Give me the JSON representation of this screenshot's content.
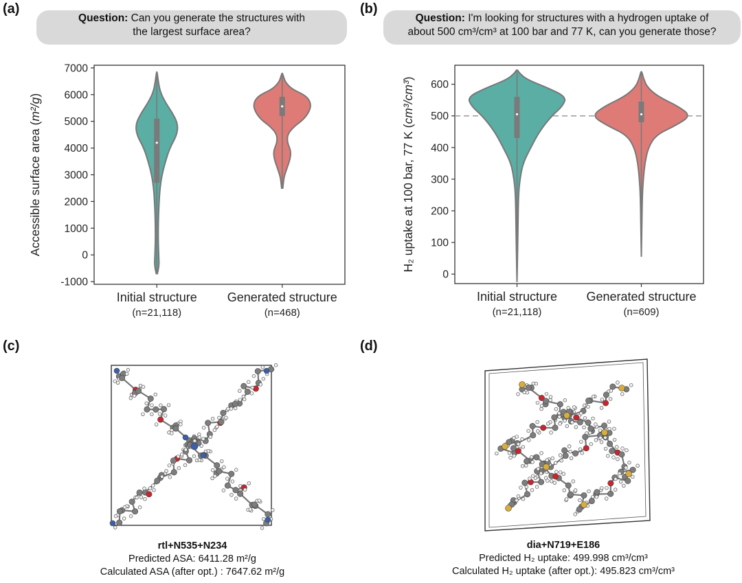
{
  "panels": {
    "a": {
      "label": "(a)",
      "question_prefix": "Question:",
      "question_line1": "Can you generate the structures with",
      "question_line2": "the largest surface area?"
    },
    "b": {
      "label": "(b)",
      "question_prefix": "Question:",
      "question_line1": "I'm looking for structures with a hydrogen uptake of",
      "question_line2": "about 500 cm³/cm³ at 100 bar and 77 K, can you generate those?"
    },
    "c": {
      "label": "(c)",
      "name": "rtl+N535+N234",
      "line1": "Predicted ASA: 6411.28 m²/g",
      "line2": "Calculated ASA (after opt.) : 7647.62 m²/g"
    },
    "d": {
      "label": "(d)",
      "name": "dia+N719+E186",
      "line1": "Predicted H₂ uptake: 499.998 cm³/cm³",
      "line2": "Calculated H₂ uptake (after opt.): 495.823 cm³/cm³"
    }
  },
  "chart_data": [
    {
      "type": "violin",
      "ylabel": "Accessible surface area (m²/g)",
      "ylim": [
        -1100,
        7100
      ],
      "yticks": [
        -1000,
        0,
        1000,
        2000,
        3000,
        4000,
        5000,
        6000,
        7000
      ],
      "categories": [
        "Initial structure",
        "Generated structure"
      ],
      "counts": [
        "(n=21,118)",
        "(n=468)"
      ],
      "colors": [
        "#5aaea4",
        "#de7b77"
      ],
      "series": [
        {
          "median": 4200,
          "q1": 2700,
          "q3": 5100,
          "min": -700,
          "max": 6850,
          "density": [
            [
              -700,
              0.02
            ],
            [
              -400,
              0.08
            ],
            [
              -100,
              0.07
            ],
            [
              500,
              0.05
            ],
            [
              1000,
              0.05
            ],
            [
              1500,
              0.06
            ],
            [
              2000,
              0.08
            ],
            [
              2500,
              0.11
            ],
            [
              3000,
              0.18
            ],
            [
              3500,
              0.3
            ],
            [
              4000,
              0.45
            ],
            [
              4500,
              0.7
            ],
            [
              4900,
              0.73
            ],
            [
              5300,
              0.55
            ],
            [
              5700,
              0.3
            ],
            [
              6100,
              0.12
            ],
            [
              6500,
              0.05
            ],
            [
              6850,
              0.01
            ]
          ]
        },
        {
          "median": 5560,
          "q1": 5200,
          "q3": 5920,
          "min": 2500,
          "max": 6800,
          "density": [
            [
              2500,
              0.02
            ],
            [
              2900,
              0.06
            ],
            [
              3200,
              0.15
            ],
            [
              3600,
              0.28
            ],
            [
              3900,
              0.3
            ],
            [
              4200,
              0.18
            ],
            [
              4500,
              0.18
            ],
            [
              4800,
              0.4
            ],
            [
              5100,
              0.78
            ],
            [
              5500,
              1.0
            ],
            [
              5800,
              0.95
            ],
            [
              6000,
              0.75
            ],
            [
              6200,
              0.35
            ],
            [
              6450,
              0.12
            ],
            [
              6650,
              0.05
            ],
            [
              6800,
              0.01
            ]
          ]
        }
      ]
    },
    {
      "type": "violin",
      "ylabel": "H₂ uptake at 100 bar, 77 K (cm³/cm³)",
      "ylim": [
        -30,
        660
      ],
      "yticks": [
        0,
        100,
        200,
        300,
        400,
        500,
        600
      ],
      "reference_line": 500,
      "categories": [
        "Initial structure",
        "Generated structure"
      ],
      "counts": [
        "(n=21,118)",
        "(n=609)"
      ],
      "colors": [
        "#5aaea4",
        "#de7b77"
      ],
      "series": [
        {
          "median": 505,
          "q1": 430,
          "q3": 560,
          "min": -25,
          "max": 645,
          "density": [
            [
              -25,
              0.0
            ],
            [
              50,
              0.01
            ],
            [
              150,
              0.02
            ],
            [
              250,
              0.03
            ],
            [
              300,
              0.06
            ],
            [
              350,
              0.12
            ],
            [
              400,
              0.28
            ],
            [
              450,
              0.45
            ],
            [
              500,
              0.7
            ],
            [
              530,
              0.92
            ],
            [
              560,
              1.0
            ],
            [
              590,
              0.6
            ],
            [
              615,
              0.2
            ],
            [
              635,
              0.05
            ],
            [
              645,
              0.01
            ]
          ]
        },
        {
          "median": 505,
          "q1": 480,
          "q3": 545,
          "min": 55,
          "max": 640,
          "density": [
            [
              55,
              0.0
            ],
            [
              150,
              0.01
            ],
            [
              250,
              0.02
            ],
            [
              300,
              0.04
            ],
            [
              350,
              0.07
            ],
            [
              400,
              0.14
            ],
            [
              440,
              0.3
            ],
            [
              470,
              0.7
            ],
            [
              500,
              1.0
            ],
            [
              530,
              0.75
            ],
            [
              560,
              0.35
            ],
            [
              590,
              0.12
            ],
            [
              620,
              0.04
            ],
            [
              640,
              0.01
            ]
          ]
        }
      ]
    }
  ]
}
